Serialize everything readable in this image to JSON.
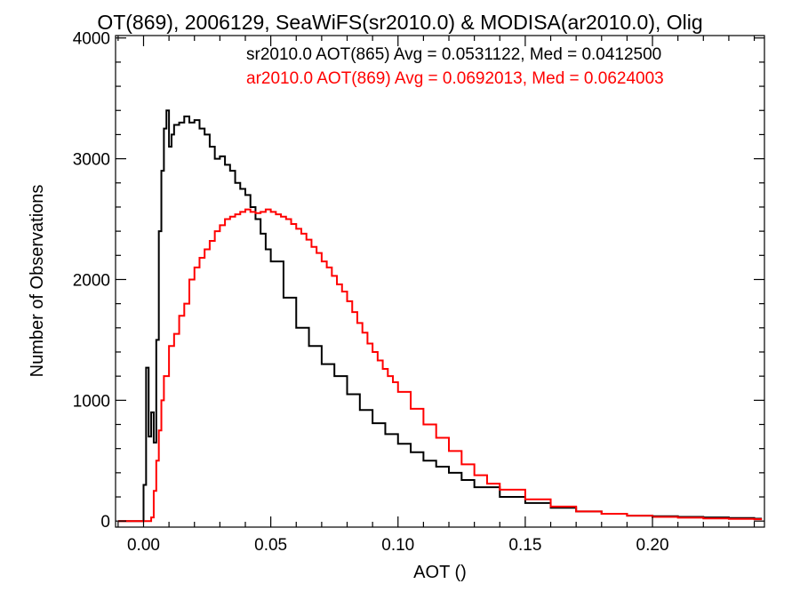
{
  "chart_data": {
    "type": "line",
    "title": "OT(869), 2006129, SeaWiFS(sr2010.0) & MODISA(ar2010.0), Olig",
    "xlabel": "AOT ()",
    "ylabel": "Number of Observations",
    "xlim": [
      -0.011,
      0.244
    ],
    "ylim": [
      -50,
      4020
    ],
    "x_ticks": [
      0.0,
      0.05,
      0.1,
      0.15,
      0.2
    ],
    "x_tick_labels": [
      "0.00",
      "0.05",
      "0.10",
      "0.15",
      "0.20"
    ],
    "y_ticks": [
      0,
      1000,
      2000,
      3000,
      4000
    ],
    "y_tick_labels": [
      "0",
      "1000",
      "2000",
      "3000",
      "4000"
    ],
    "annotations": [
      {
        "text": "sr2010.0 AOT(865) Avg = 0.0531122, Med = 0.0412500",
        "color": "#000000"
      },
      {
        "text": "ar2010.0 AOT(869) Avg = 0.0692013, Med = 0.0624003",
        "color": "#ff0000"
      }
    ],
    "series": [
      {
        "color": "#000000",
        "style": "steps",
        "x": [
          -0.01,
          -0.001,
          0.0,
          0.001,
          0.002,
          0.003,
          0.004,
          0.005,
          0.006,
          0.007,
          0.008,
          0.009,
          0.01,
          0.011,
          0.012,
          0.014,
          0.016,
          0.018,
          0.02,
          0.022,
          0.024,
          0.026,
          0.028,
          0.03,
          0.032,
          0.034,
          0.036,
          0.038,
          0.04,
          0.042,
          0.044,
          0.046,
          0.048,
          0.05,
          0.055,
          0.06,
          0.065,
          0.07,
          0.075,
          0.08,
          0.085,
          0.09,
          0.095,
          0.1,
          0.105,
          0.11,
          0.115,
          0.12,
          0.125,
          0.13,
          0.14,
          0.15,
          0.16,
          0.17,
          0.18,
          0.19,
          0.2,
          0.21,
          0.22,
          0.23,
          0.24,
          0.243
        ],
        "y": [
          0,
          0,
          300,
          1270,
          700,
          900,
          650,
          1500,
          2400,
          2900,
          3250,
          3400,
          3100,
          3200,
          3280,
          3300,
          3350,
          3300,
          3320,
          3250,
          3200,
          3100,
          3000,
          3020,
          2950,
          2900,
          2800,
          2750,
          2700,
          2600,
          2500,
          2380,
          2250,
          2150,
          1850,
          1600,
          1450,
          1300,
          1200,
          1050,
          920,
          810,
          720,
          640,
          570,
          500,
          450,
          400,
          340,
          280,
          200,
          150,
          110,
          80,
          60,
          45,
          40,
          35,
          30,
          25,
          20,
          20
        ]
      },
      {
        "color": "# ff0000",
        "style": "steps",
        "x": [
          -0.01,
          0.002,
          0.003,
          0.004,
          0.005,
          0.006,
          0.007,
          0.008,
          0.01,
          0.012,
          0.014,
          0.016,
          0.018,
          0.02,
          0.022,
          0.024,
          0.026,
          0.028,
          0.03,
          0.032,
          0.034,
          0.036,
          0.038,
          0.04,
          0.042,
          0.044,
          0.046,
          0.048,
          0.05,
          0.052,
          0.054,
          0.056,
          0.058,
          0.06,
          0.062,
          0.064,
          0.066,
          0.068,
          0.07,
          0.072,
          0.074,
          0.076,
          0.078,
          0.08,
          0.082,
          0.084,
          0.086,
          0.088,
          0.09,
          0.092,
          0.094,
          0.096,
          0.098,
          0.1,
          0.105,
          0.11,
          0.115,
          0.12,
          0.125,
          0.13,
          0.135,
          0.14,
          0.15,
          0.16,
          0.17,
          0.18,
          0.19,
          0.2,
          0.21,
          0.22,
          0.23,
          0.24,
          0.243
        ],
        "y": [
          0,
          0,
          30,
          250,
          500,
          750,
          1000,
          1200,
          1450,
          1550,
          1700,
          1800,
          2000,
          2100,
          2180,
          2250,
          2320,
          2400,
          2450,
          2500,
          2520,
          2540,
          2560,
          2580,
          2560,
          2550,
          2560,
          2580,
          2560,
          2540,
          2520,
          2500,
          2460,
          2420,
          2380,
          2330,
          2270,
          2220,
          2150,
          2100,
          2030,
          1960,
          1900,
          1820,
          1730,
          1640,
          1560,
          1470,
          1400,
          1330,
          1260,
          1200,
          1150,
          1070,
          930,
          800,
          690,
          580,
          470,
          380,
          310,
          260,
          180,
          120,
          80,
          60,
          45,
          35,
          28,
          22,
          18,
          15,
          15
        ]
      }
    ]
  }
}
